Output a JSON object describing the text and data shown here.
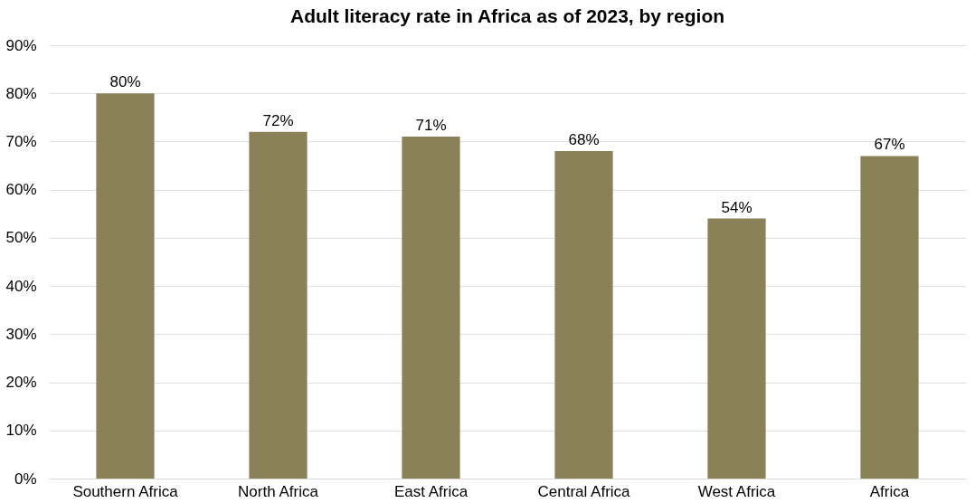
{
  "chart_data": {
    "type": "bar",
    "title": "Adult literacy rate in Africa as of 2023, by region",
    "categories": [
      "Southern Africa",
      "North Africa",
      "East Africa",
      "Central Africa",
      "West Africa",
      "Africa"
    ],
    "values": [
      80,
      72,
      71,
      68,
      54,
      67
    ],
    "value_labels": [
      "80%",
      "72%",
      "71%",
      "68%",
      "54%",
      "67%"
    ],
    "color": "#8b8159",
    "ylim": [
      0,
      90
    ],
    "yticks": [
      {
        "value": 0,
        "label": "0%"
      },
      {
        "value": 10,
        "label": "10%"
      },
      {
        "value": 20,
        "label": "20%"
      },
      {
        "value": 30,
        "label": "30%"
      },
      {
        "value": 40,
        "label": "40%"
      },
      {
        "value": 50,
        "label": "50%"
      },
      {
        "value": 60,
        "label": "60%"
      },
      {
        "value": 70,
        "label": "70%"
      },
      {
        "value": 80,
        "label": "80%"
      },
      {
        "value": 90,
        "label": "90%"
      }
    ],
    "grid": "y"
  }
}
